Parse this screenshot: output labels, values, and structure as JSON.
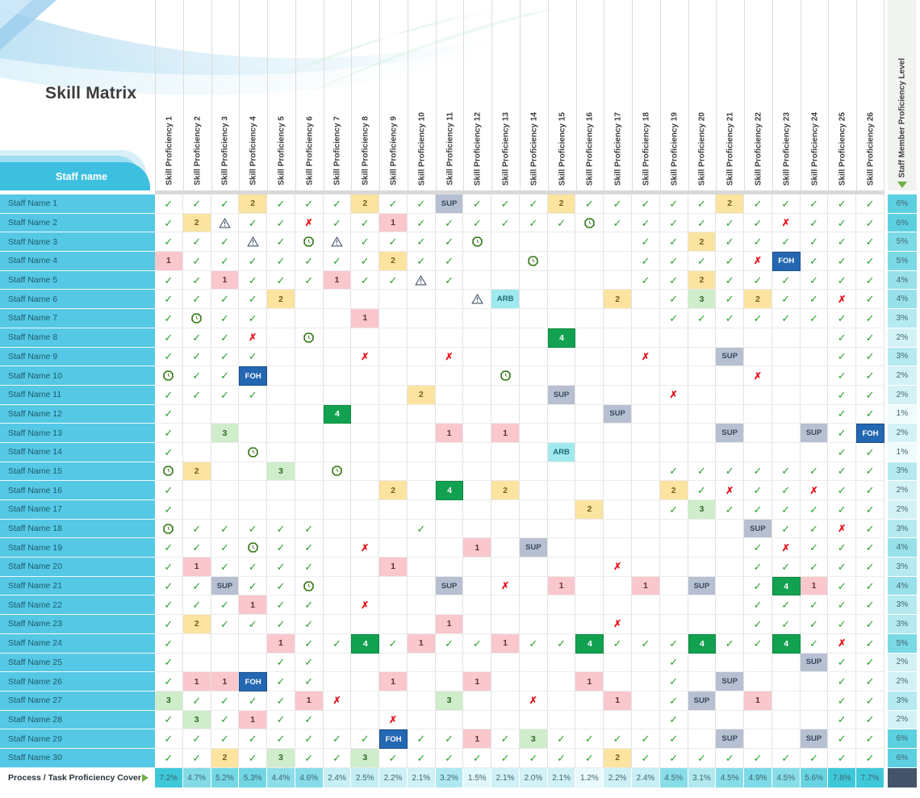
{
  "title": "Skill Matrix",
  "staff_header": "Staff name",
  "right_header": "Staff Member Proficiency Level",
  "bottom_label": "Process / Task Proficiency Cover",
  "columns": [
    "Skill Proficiency 1",
    "Skill Proficiency 2",
    "Skill Proficiency 3",
    "Skill Proficiency 4",
    "Skill Proficiency 5",
    "Skill Proficiency 6",
    "Skill Proficiency 7",
    "Skill Proficiency 8",
    "Skill Proficiency 9",
    "Skill Proficiency 10",
    "Skill Proficiency 11",
    "Skill Proficiency 12",
    "Skill Proficiency 13",
    "Skill Proficiency 14",
    "Skill Proficiency 15",
    "Skill Proficiency 16",
    "Skill Proficiency 17",
    "Skill Proficiency 18",
    "Skill Proficiency 19",
    "Skill Proficiency 20",
    "Skill Proficiency 21",
    "Skill Proficiency 22",
    "Skill Proficiency 23",
    "Skill Proficiency 24",
    "Skill Proficiency 25",
    "Skill Proficiency 26"
  ],
  "cell_codes_legend": {
    "c": "check",
    "x": "cross",
    "w": "warning-triangle",
    "g": "clock",
    "1": "level-1",
    "2": "level-2",
    "3": "level-3",
    "4": "level-4",
    "SUP": "SUP",
    "FOH": "FOH",
    "ARB": "ARB",
    "": "empty"
  },
  "rows": [
    {
      "name": "Staff Name 1",
      "level": "6%",
      "cells": [
        "c",
        "c",
        "c",
        "2",
        "c",
        "c",
        "c",
        "2",
        "c",
        "c",
        "SUP",
        "c",
        "c",
        "c",
        "2",
        "c",
        "c",
        "c",
        "c",
        "c",
        "2",
        "c",
        "c",
        "c",
        "c",
        "c"
      ]
    },
    {
      "name": "Staff Name 2",
      "level": "6%",
      "cells": [
        "c",
        "2",
        "w",
        "c",
        "c",
        "x",
        "c",
        "c",
        "1",
        "c",
        "c",
        "c",
        "c",
        "c",
        "c",
        "g",
        "c",
        "c",
        "c",
        "c",
        "c",
        "c",
        "x",
        "c",
        "c",
        "c"
      ]
    },
    {
      "name": "Staff Name 3",
      "level": "5%",
      "cells": [
        "c",
        "c",
        "c",
        "w",
        "c",
        "g",
        "w",
        "c",
        "c",
        "c",
        "c",
        "g",
        "",
        "",
        "",
        "",
        "",
        "c",
        "c",
        "2",
        "c",
        "c",
        "c",
        "c",
        "c",
        "c"
      ]
    },
    {
      "name": "Staff Name 4",
      "level": "5%",
      "cells": [
        "1",
        "c",
        "c",
        "c",
        "c",
        "c",
        "c",
        "c",
        "2",
        "c",
        "c",
        "",
        "",
        "g",
        "",
        "",
        "",
        "c",
        "c",
        "c",
        "c",
        "x",
        "FOH",
        "c",
        "c",
        "c"
      ]
    },
    {
      "name": "Staff Name 5",
      "level": "4%",
      "cells": [
        "c",
        "c",
        "1",
        "c",
        "c",
        "c",
        "1",
        "c",
        "c",
        "w",
        "c",
        "",
        "",
        "",
        "",
        "",
        "",
        "c",
        "c",
        "2",
        "c",
        "c",
        "c",
        "c",
        "c",
        "c"
      ]
    },
    {
      "name": "Staff Name 6",
      "level": "4%",
      "cells": [
        "c",
        "c",
        "c",
        "c",
        "2",
        "",
        "",
        "",
        "",
        "",
        "",
        "w",
        "ARB",
        "",
        "",
        "",
        "2",
        "",
        "c",
        "3",
        "c",
        "2",
        "c",
        "c",
        "x",
        "c"
      ]
    },
    {
      "name": "Staff Name 7",
      "level": "3%",
      "cells": [
        "c",
        "g",
        "c",
        "c",
        "",
        "",
        "",
        "1",
        "",
        "",
        "",
        "",
        "",
        "",
        "",
        "",
        "",
        "",
        "c",
        "c",
        "c",
        "c",
        "c",
        "c",
        "c",
        "c"
      ]
    },
    {
      "name": "Staff Name 8",
      "level": "2%",
      "cells": [
        "c",
        "c",
        "c",
        "x",
        "",
        "g",
        "",
        "",
        "",
        "",
        "",
        "",
        "",
        "",
        "4",
        "",
        "",
        "",
        "",
        "",
        "",
        "",
        "",
        "",
        "c",
        "c"
      ]
    },
    {
      "name": "Staff Name 9",
      "level": "3%",
      "cells": [
        "c",
        "c",
        "c",
        "c",
        "",
        "",
        "",
        "x",
        "",
        "",
        "x",
        "",
        "",
        "",
        "",
        "",
        "",
        "x",
        "",
        "",
        "SUP",
        "",
        "",
        "",
        "c",
        "c"
      ]
    },
    {
      "name": "Staff Name 10",
      "level": "2%",
      "cells": [
        "g",
        "c",
        "c",
        "FOH",
        "",
        "",
        "",
        "",
        "",
        "",
        "",
        "",
        "g",
        "",
        "",
        "",
        "",
        "",
        "",
        "",
        "",
        "x",
        "",
        "",
        "c",
        "c"
      ]
    },
    {
      "name": "Staff Name 11",
      "level": "2%",
      "cells": [
        "c",
        "c",
        "c",
        "c",
        "",
        "",
        "",
        "",
        "",
        "2",
        "",
        "",
        "",
        "",
        "SUP",
        "",
        "",
        "",
        "x",
        "",
        "",
        "",
        "",
        "",
        "c",
        "c"
      ]
    },
    {
      "name": "Staff Name 12",
      "level": "1%",
      "cells": [
        "c",
        "",
        "",
        "",
        "",
        "",
        "4",
        "",
        "",
        "",
        "",
        "",
        "",
        "",
        "",
        "",
        "SUP",
        "",
        "",
        "",
        "",
        "",
        "",
        "",
        "c",
        "c"
      ]
    },
    {
      "name": "Staff Name 13",
      "level": "2%",
      "cells": [
        "c",
        "",
        "3",
        "",
        "",
        "",
        "",
        "",
        "",
        "",
        "1",
        "",
        "1",
        "",
        "",
        "",
        "",
        "",
        "",
        "",
        "SUP",
        "",
        "",
        "SUP",
        "c",
        "FOH"
      ]
    },
    {
      "name": "Staff Name 14",
      "level": "1%",
      "cells": [
        "c",
        "",
        "",
        "g",
        "",
        "",
        "",
        "",
        "",
        "",
        "",
        "",
        "",
        "",
        "ARB",
        "",
        "",
        "",
        "",
        "",
        "",
        "",
        "",
        "",
        "c",
        "c"
      ]
    },
    {
      "name": "Staff Name 15",
      "level": "3%",
      "cells": [
        "g",
        "2",
        "",
        "",
        "3",
        "",
        "g",
        "",
        "",
        "",
        "",
        "",
        "",
        "",
        "",
        "",
        "",
        "",
        "c",
        "c",
        "c",
        "c",
        "c",
        "c",
        "c",
        "c"
      ]
    },
    {
      "name": "Staff Name 16",
      "level": "2%",
      "cells": [
        "c",
        "",
        "",
        "",
        "",
        "",
        "",
        "",
        "2",
        "",
        "4",
        "",
        "2",
        "",
        "",
        "",
        "",
        "",
        "2",
        "c",
        "x",
        "c",
        "c",
        "x",
        "c",
        "c"
      ]
    },
    {
      "name": "Staff Name 17",
      "level": "2%",
      "cells": [
        "c",
        "",
        "",
        "",
        "",
        "",
        "",
        "",
        "",
        "",
        "",
        "",
        "",
        "",
        "",
        "2",
        "",
        "",
        "c",
        "3",
        "c",
        "c",
        "c",
        "c",
        "c",
        "c"
      ]
    },
    {
      "name": "Staff Name 18",
      "level": "3%",
      "cells": [
        "g",
        "c",
        "c",
        "c",
        "c",
        "c",
        "",
        "",
        "",
        "c",
        "",
        "",
        "",
        "",
        "",
        "",
        "",
        "",
        "",
        "",
        "",
        "SUP",
        "c",
        "c",
        "x",
        "c"
      ]
    },
    {
      "name": "Staff Name 19",
      "level": "4%",
      "cells": [
        "c",
        "c",
        "c",
        "g",
        "c",
        "c",
        "",
        "x",
        "",
        "",
        "",
        "1",
        "",
        "SUP",
        "",
        "",
        "",
        "",
        "",
        "",
        "",
        "c",
        "x",
        "c",
        "c",
        "c"
      ]
    },
    {
      "name": "Staff Name 20",
      "level": "3%",
      "cells": [
        "c",
        "1",
        "c",
        "c",
        "c",
        "c",
        "",
        "",
        "1",
        "",
        "",
        "",
        "",
        "",
        "",
        "",
        "x",
        "",
        "",
        "",
        "",
        "c",
        "c",
        "c",
        "c",
        "c"
      ]
    },
    {
      "name": "Staff Name 21",
      "level": "4%",
      "cells": [
        "c",
        "c",
        "SUP",
        "c",
        "c",
        "g",
        "",
        "",
        "",
        "",
        "SUP",
        "",
        "x",
        "",
        "1",
        "",
        "",
        "1",
        "",
        "SUP",
        "",
        "c",
        "4",
        "1",
        "c",
        "c"
      ]
    },
    {
      "name": "Staff Name 22",
      "level": "3%",
      "cells": [
        "c",
        "c",
        "c",
        "1",
        "c",
        "c",
        "",
        "x",
        "",
        "",
        "",
        "",
        "",
        "",
        "",
        "",
        "",
        "",
        "",
        "",
        "",
        "c",
        "c",
        "c",
        "c",
        "c"
      ]
    },
    {
      "name": "Staff Name 23",
      "level": "3%",
      "cells": [
        "c",
        "2",
        "c",
        "c",
        "c",
        "c",
        "",
        "",
        "",
        "",
        "1",
        "",
        "",
        "",
        "",
        "",
        "x",
        "",
        "",
        "",
        "",
        "c",
        "c",
        "c",
        "c",
        "c"
      ]
    },
    {
      "name": "Staff Name 24",
      "level": "5%",
      "cells": [
        "c",
        "",
        "",
        "",
        "1",
        "c",
        "c",
        "4",
        "c",
        "1",
        "c",
        "c",
        "1",
        "c",
        "c",
        "4",
        "c",
        "c",
        "c",
        "4",
        "c",
        "c",
        "4",
        "c",
        "x",
        "c"
      ]
    },
    {
      "name": "Staff Name 25",
      "level": "2%",
      "cells": [
        "c",
        "",
        "",
        "",
        "c",
        "c",
        "",
        "",
        "",
        "",
        "",
        "",
        "",
        "",
        "",
        "",
        "",
        "",
        "c",
        "",
        "",
        "",
        "",
        "SUP",
        "c",
        "c"
      ]
    },
    {
      "name": "Staff Name 26",
      "level": "2%",
      "cells": [
        "c",
        "1",
        "1",
        "FOH",
        "c",
        "c",
        "",
        "",
        "1",
        "",
        "",
        "1",
        "",
        "",
        "",
        "1",
        "",
        "",
        "c",
        "",
        "SUP",
        "",
        "",
        "",
        "c",
        "c"
      ]
    },
    {
      "name": "Staff Name 27",
      "level": "3%",
      "cells": [
        "3",
        "c",
        "c",
        "c",
        "c",
        "1",
        "x",
        "",
        "",
        "",
        "3",
        "",
        "",
        "x",
        "",
        "",
        "1",
        "",
        "c",
        "SUP",
        "",
        "1",
        "",
        "",
        "c",
        "c"
      ]
    },
    {
      "name": "Staff Name 28",
      "level": "2%",
      "cells": [
        "c",
        "3",
        "c",
        "1",
        "c",
        "c",
        "",
        "",
        "x",
        "",
        "",
        "",
        "",
        "",
        "",
        "",
        "",
        "",
        "c",
        "",
        "",
        "",
        "",
        "",
        "c",
        "c"
      ]
    },
    {
      "name": "Staff Name 29",
      "level": "6%",
      "cells": [
        "c",
        "c",
        "c",
        "c",
        "c",
        "c",
        "c",
        "c",
        "FOH",
        "c",
        "c",
        "1",
        "c",
        "3",
        "c",
        "c",
        "c",
        "c",
        "c",
        "",
        "SUP",
        "",
        "",
        "SUP",
        "c",
        "c"
      ]
    },
    {
      "name": "Staff Name 30",
      "level": "6%",
      "cells": [
        "c",
        "c",
        "2",
        "c",
        "3",
        "c",
        "c",
        "3",
        "c",
        "c",
        "c",
        "c",
        "c",
        "c",
        "c",
        "c",
        "2",
        "c",
        "c",
        "c",
        "c",
        "c",
        "c",
        "c",
        "c",
        "c"
      ]
    }
  ],
  "bottom_values": [
    "7.2%",
    "4.7%",
    "5.2%",
    "5.3%",
    "4.4%",
    "4.6%",
    "2.4%",
    "2.5%",
    "2.2%",
    "2.1%",
    "3.2%",
    "1.5%",
    "2.1%",
    "2.0%",
    "2.1%",
    "1.2%",
    "2.2%",
    "2.4%",
    "4.5%",
    "3.1%",
    "4.5%",
    "4.9%",
    "4.5%",
    "5.6%",
    "7.8%",
    "7.7%"
  ],
  "colors": {
    "accent_cyan": "#3dbfe0",
    "staff_row_bg": "#54c8e4",
    "tab_light": "#d7f0f8",
    "tab_mid": "#9edff1",
    "check_green": "#2aa12a",
    "cross_red": "#e8141e",
    "warning_navy": "#44546a",
    "clock_green": "#3a7d1e",
    "num1_bg": "#f9c7cc",
    "num2_bg": "#fbe3a0",
    "num3_bg": "#cfeccb",
    "num4_bg": "#12a150",
    "sup_bg": "#b6c0d1",
    "foh_bg": "#2467b2",
    "arb_bg": "#9fe9ef",
    "heat_base": "#3fc8da",
    "bottom_right_bg": "#44546a",
    "marker_green": "#6fae46"
  },
  "icons": {
    "check": "check-icon",
    "cross": "cross-icon",
    "warning": "warning-triangle-icon",
    "clock": "clock-icon",
    "level_marker": "triangle-down-icon",
    "cover_marker": "triangle-right-icon"
  }
}
